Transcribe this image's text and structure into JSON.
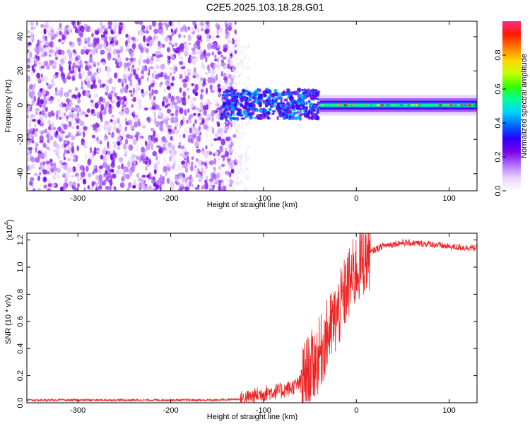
{
  "page_title": "C2E5.2025.103.18.28.G01",
  "chart_data": [
    {
      "type": "heatmap",
      "title": "C2E5.2025.103.18.28.G01",
      "xlabel": "Height of straight line (km)",
      "ylabel": "Frequency (Hz)",
      "xlim": [
        -355,
        130
      ],
      "ylim": [
        -50,
        49
      ],
      "x_ticks": [
        -300,
        -200,
        -100,
        0,
        100
      ],
      "x_tick_labels": [
        "-300",
        "-200",
        "-100",
        "0",
        "100"
      ],
      "y_ticks": [
        -40,
        -20,
        0,
        20,
        40
      ],
      "y_tick_labels": [
        "-40",
        "-20",
        "0",
        "20",
        "40"
      ],
      "colorbar": {
        "label": "Normalized spectral amplitude",
        "range": [
          0,
          1
        ],
        "ticks": [
          0.0,
          0.2,
          0.4,
          0.6,
          0.8
        ],
        "tick_labels": [
          "0.0",
          "0.2",
          "0.4",
          "0.6",
          "0.8"
        ],
        "colors": [
          "#ffffff",
          "#e9d2ff",
          "#b070ff",
          "#7a00e6",
          "#2a00ff",
          "#0068ff",
          "#00d2ff",
          "#00ff9a",
          "#33ff00",
          "#c8ff00",
          "#ffd400",
          "#ff7a00",
          "#ff1a00",
          "#ff2a8a"
        ]
      },
      "regions": [
        {
          "name": "noise",
          "x_range": [
            -355,
            -130
          ],
          "freq_range": [
            -50,
            49
          ],
          "amplitude_range": [
            0.05,
            0.25
          ]
        },
        {
          "name": "transition",
          "x_range": [
            -145,
            -40
          ],
          "freq_range": [
            -8,
            9
          ],
          "amplitude_range": [
            0.2,
            0.45
          ]
        },
        {
          "name": "tone",
          "x_range": [
            -40,
            130
          ],
          "center_freq": 0,
          "amplitude_range": [
            0.4,
            1.0
          ]
        }
      ],
      "grid": false
    },
    {
      "type": "line",
      "xlabel": "Height of straight line (km)",
      "ylabel": "SNR (10 * v/v)",
      "y_multiplier_label": "(x10",
      "y_multiplier_exp": "4",
      "y_multiplier_close": ")",
      "xlim": [
        -355,
        130
      ],
      "ylim": [
        0,
        1.25
      ],
      "x_ticks": [
        -300,
        -200,
        -100,
        0,
        100
      ],
      "x_tick_labels": [
        "-300",
        "-200",
        "-100",
        "0",
        "100"
      ],
      "y_ticks": [
        0.0,
        0.2,
        0.4,
        0.6,
        0.8,
        1.0,
        1.2
      ],
      "y_tick_labels": [
        "0.0",
        "0.2",
        "0.4",
        "0.6",
        "0.8",
        "1.0",
        "1.2"
      ],
      "series": [
        {
          "color": "#ee2222",
          "x": [
            -355,
            -300,
            -250,
            -200,
            -150,
            -120,
            -110,
            -100,
            -90,
            -80,
            -70,
            -60,
            -50,
            -40,
            -30,
            -20,
            -10,
            0,
            10,
            20,
            30,
            50,
            80,
            100,
            130
          ],
          "y": [
            0.02,
            0.02,
            0.02,
            0.02,
            0.02,
            0.03,
            0.05,
            0.07,
            0.08,
            0.09,
            0.11,
            0.15,
            0.24,
            0.35,
            0.52,
            0.65,
            0.85,
            0.98,
            1.08,
            1.13,
            1.16,
            1.18,
            1.17,
            1.15,
            1.14
          ]
        }
      ],
      "grid": false
    }
  ]
}
